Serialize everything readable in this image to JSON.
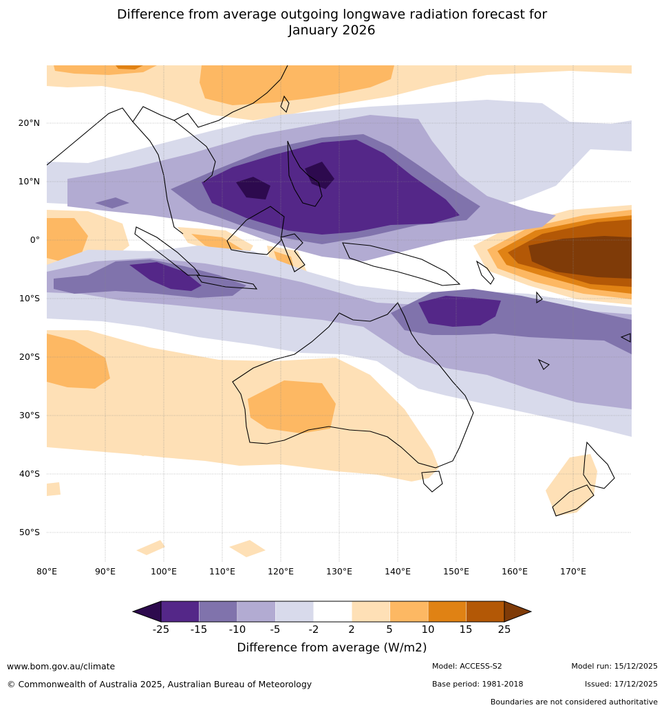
{
  "title_line1": "Difference from average outgoing longwave radiation forecast for",
  "title_line2": "January 2026",
  "map": {
    "lon_range": [
      80,
      180
    ],
    "lat_range": [
      -55,
      30
    ],
    "lat_labels": [
      "20°N",
      "10°N",
      "0°",
      "10°S",
      "20°S",
      "30°S",
      "40°S",
      "50°S"
    ],
    "lon_labels": [
      "80°E",
      "90°E",
      "100°E",
      "110°E",
      "120°E",
      "130°E",
      "140°E",
      "150°E",
      "160°E",
      "170°E"
    ]
  },
  "colorbar": {
    "title": "Difference from average (W/m2)",
    "ticks": [
      "-25",
      "-15",
      "-10",
      "-5",
      "-2",
      "2",
      "5",
      "10",
      "15",
      "25"
    ],
    "under_color": "#2d0a4e",
    "over_color": "#7f3b08",
    "colors": [
      "#542788",
      "#8073ac",
      "#b2abd2",
      "#d8daeb",
      "#ffffff",
      "#fee0b6",
      "#fdb863",
      "#e08214",
      "#b35806"
    ]
  },
  "footer": {
    "website": "www.bom.gov.au/climate",
    "copyright": "© Commonwealth of Australia 2025, Australian Bureau of Meteorology",
    "model": "Model: ACCESS-S2",
    "base_period": "Base period: 1981-2018",
    "model_run": "Model run: 15/12/2025",
    "issued": "Issued: 17/12/2025",
    "boundaries_note": "Boundaries are not considered authoritative"
  }
}
